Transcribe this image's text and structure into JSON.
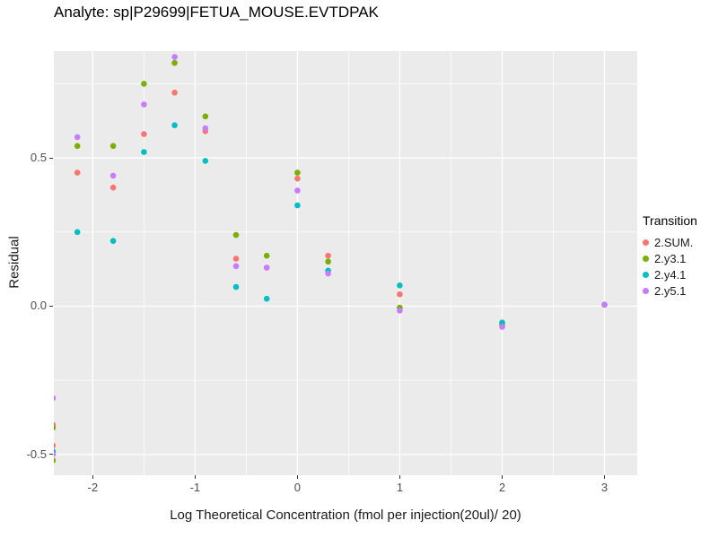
{
  "chart_data": {
    "type": "scatter",
    "title": "Analyte: sp|P29699|FETUA_MOUSE.EVTDPAK",
    "xlabel": "Log Theoretical Concentration (fmol per injection(20ul)/ 20)",
    "ylabel": "Residual",
    "legend_title": "Transition",
    "legend_position": "right",
    "grid": true,
    "panel_bg": "#EBEBEB",
    "grid_color": "#FFFFFF",
    "xlim": [
      -2.38,
      3.32
    ],
    "ylim": [
      -0.57,
      0.86
    ],
    "x_ticks": [
      -2,
      -1,
      0,
      1,
      2,
      3
    ],
    "x_tick_labels": [
      "-2",
      "-1",
      "0",
      "1",
      "2",
      "3"
    ],
    "y_ticks": [
      -0.5,
      0.0,
      0.5
    ],
    "y_tick_labels": [
      "-0.5",
      "0.0",
      "0.5"
    ],
    "series": [
      {
        "name": "2.SUM.",
        "color": "#F8766D",
        "points": [
          [
            -2.39,
            -0.4
          ],
          [
            -2.39,
            -0.47
          ],
          [
            -2.15,
            0.45
          ],
          [
            -1.8,
            0.4
          ],
          [
            -1.5,
            0.58
          ],
          [
            -1.2,
            0.72
          ],
          [
            -0.9,
            0.59
          ],
          [
            -0.6,
            0.16
          ],
          [
            -0.3,
            0.13
          ],
          [
            0,
            0.43
          ],
          [
            0.3,
            0.17
          ],
          [
            1,
            0.04
          ],
          [
            2,
            -0.06
          ],
          [
            3,
            0.005
          ]
        ]
      },
      {
        "name": "2.y3.1",
        "color": "#7CAE00",
        "points": [
          [
            -2.39,
            -0.41
          ],
          [
            -2.39,
            -0.52
          ],
          [
            -2.15,
            0.54
          ],
          [
            -1.8,
            0.54
          ],
          [
            -1.5,
            0.75
          ],
          [
            -1.2,
            0.82
          ],
          [
            -0.9,
            0.64
          ],
          [
            -0.6,
            0.24
          ],
          [
            -0.3,
            0.17
          ],
          [
            0,
            0.45
          ],
          [
            0.3,
            0.15
          ],
          [
            1,
            -0.005
          ],
          [
            2,
            -0.065
          ],
          [
            3,
            0.005
          ]
        ]
      },
      {
        "name": "2.y4.1",
        "color": "#00BFC4",
        "points": [
          [
            -2.39,
            -0.49
          ],
          [
            -2.15,
            0.25
          ],
          [
            -1.8,
            0.22
          ],
          [
            -1.5,
            0.52
          ],
          [
            -1.2,
            0.61
          ],
          [
            -0.9,
            0.49
          ],
          [
            -0.6,
            0.065
          ],
          [
            -0.3,
            0.025
          ],
          [
            0,
            0.34
          ],
          [
            0.3,
            0.12
          ],
          [
            1,
            0.07
          ],
          [
            2,
            -0.055
          ],
          [
            3,
            0.005
          ]
        ]
      },
      {
        "name": "2.y5.1",
        "color": "#C77CFF",
        "points": [
          [
            -2.39,
            -0.31
          ],
          [
            -2.39,
            -0.5
          ],
          [
            -2.15,
            0.57
          ],
          [
            -1.8,
            0.44
          ],
          [
            -1.5,
            0.68
          ],
          [
            -1.2,
            0.84
          ],
          [
            -0.9,
            0.6
          ],
          [
            -0.6,
            0.135
          ],
          [
            -0.3,
            0.13
          ],
          [
            0,
            0.39
          ],
          [
            0.3,
            0.11
          ],
          [
            1,
            -0.015
          ],
          [
            2,
            -0.07
          ],
          [
            3,
            0.005
          ]
        ]
      }
    ]
  }
}
